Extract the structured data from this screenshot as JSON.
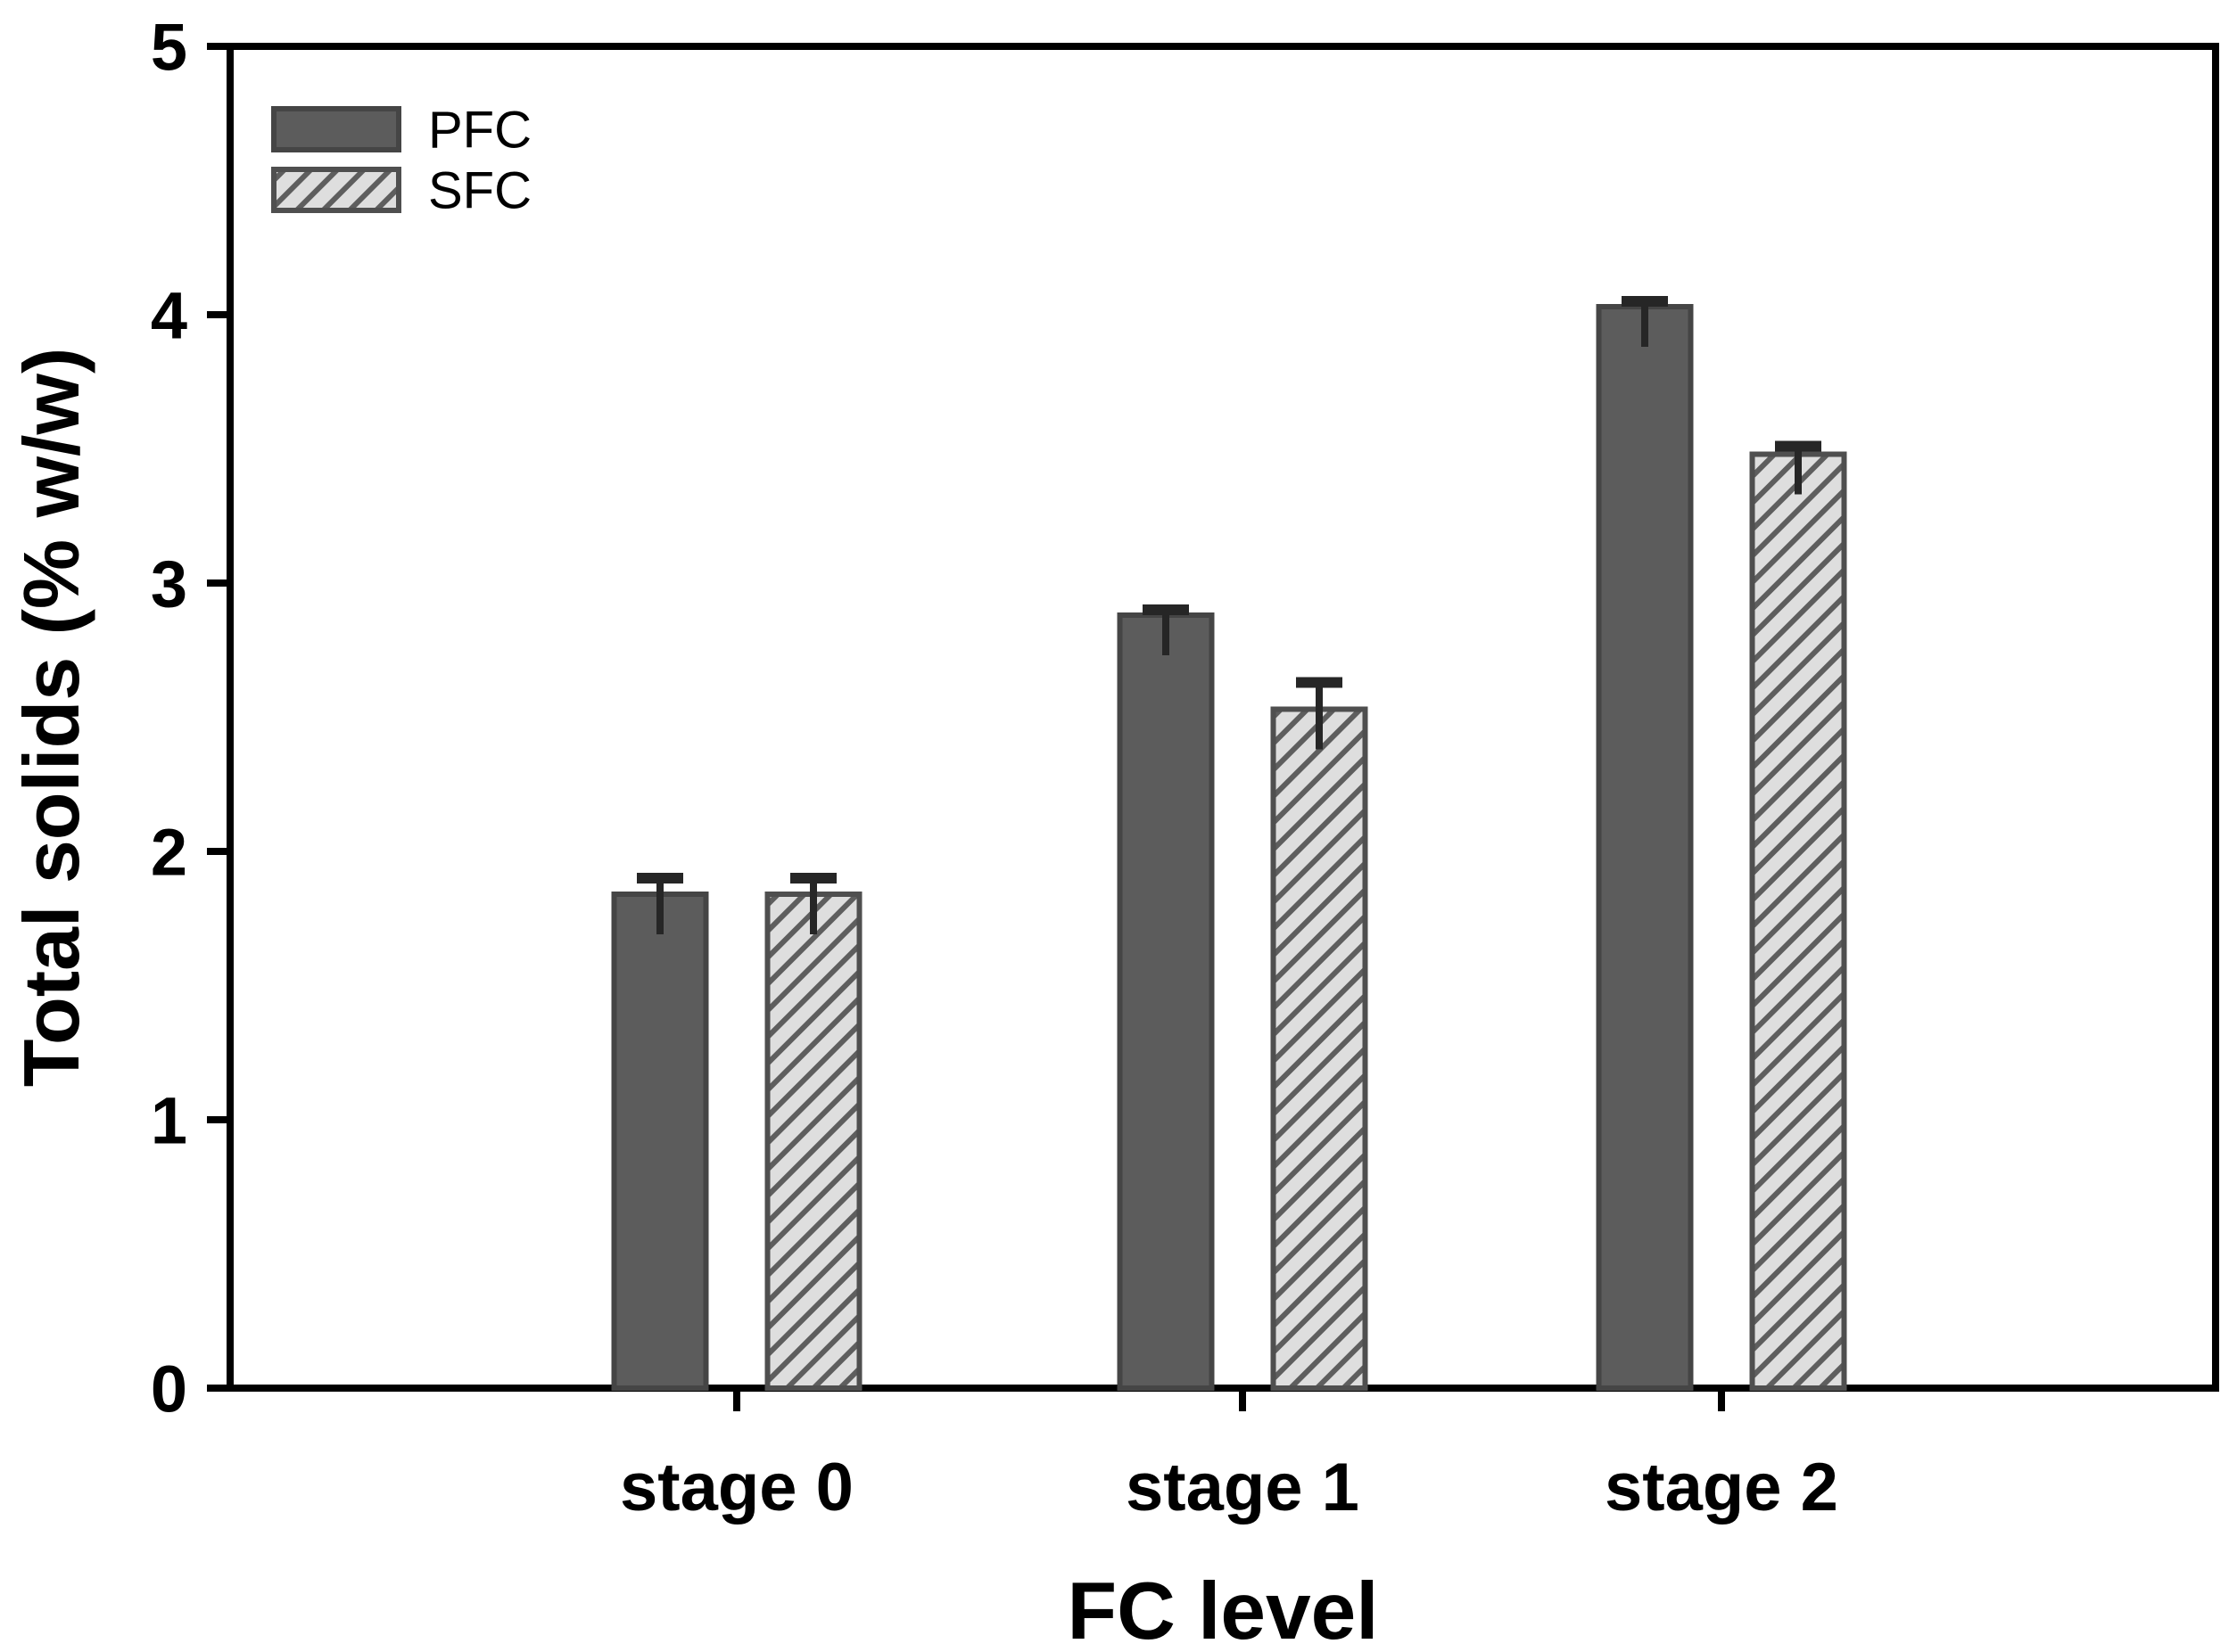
{
  "figure": {
    "background": "#ffffff"
  },
  "chart_data": {
    "type": "bar",
    "title": "",
    "xlabel": "FC level",
    "ylabel": "Total solids (% w/w)",
    "categories": [
      "stage 0",
      "stage 1",
      "stage 2"
    ],
    "series": [
      {
        "name": "PFC",
        "values": [
          1.84,
          2.88,
          4.03
        ],
        "errors": [
          0.06,
          0.02,
          0.02
        ],
        "fill": "#5c5c5c",
        "border": "#454545",
        "hatch": null
      },
      {
        "name": "SFC",
        "values": [
          1.84,
          2.53,
          3.48
        ],
        "errors": [
          0.06,
          0.1,
          0.03
        ],
        "fill": "#dedede",
        "border": "#4f4f4f",
        "hatch": {
          "direction": "/",
          "color": "#5e5e5e"
        }
      }
    ],
    "ylim": [
      0,
      5
    ],
    "yticks": [
      "0",
      "1",
      "2",
      "3",
      "4",
      "5"
    ],
    "grid": false,
    "legend": {
      "position": "top-left-inside",
      "entries": [
        "PFC",
        "SFC"
      ]
    },
    "error_bar_color": "#262626",
    "axis_color": "#000000",
    "text_color": "#000000",
    "error_bars": "mean + upper whisker with cap"
  }
}
